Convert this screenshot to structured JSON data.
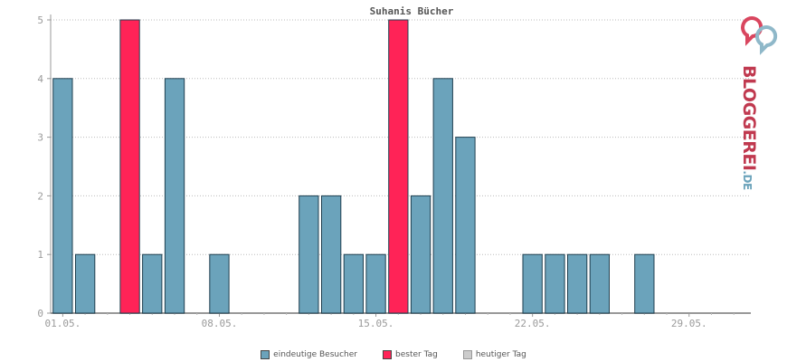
{
  "chart_data": {
    "type": "bar",
    "title": "Suhanis Bücher",
    "categories": [
      "01.05.",
      "02.05.",
      "03.05.",
      "04.05.",
      "05.05.",
      "06.05.",
      "07.05.",
      "08.05.",
      "09.05.",
      "10.05.",
      "11.05.",
      "12.05.",
      "13.05.",
      "14.05.",
      "15.05.",
      "16.05.",
      "17.05.",
      "18.05.",
      "19.05.",
      "20.05.",
      "21.05.",
      "22.05.",
      "23.05.",
      "24.05.",
      "25.05.",
      "26.05.",
      "27.05.",
      "28.05.",
      "29.05.",
      "30.05.",
      "31.05."
    ],
    "x_tick_labels": [
      "01.05.",
      "08.05.",
      "15.05.",
      "22.05.",
      "29.05."
    ],
    "x_tick_indices": [
      0,
      7,
      14,
      21,
      28
    ],
    "values": [
      4,
      1,
      0,
      5,
      1,
      4,
      0,
      1,
      0,
      0,
      0,
      2,
      2,
      1,
      1,
      5,
      2,
      4,
      3,
      0,
      0,
      1,
      1,
      1,
      1,
      0,
      1,
      0,
      0,
      0,
      0
    ],
    "best_day_indices": [
      3,
      15
    ],
    "ylim": [
      0,
      5
    ],
    "yticks": [
      0,
      1,
      2,
      3,
      4,
      5
    ],
    "grid": true,
    "legend_position": "bottom",
    "colors": {
      "unique_visitors": "#6ba3bb",
      "best_day": "#ff2357",
      "today": "#cccccc",
      "bar_border": "#1f3f4f"
    }
  },
  "legend": {
    "unique_visitors": "eindeutige Besucher",
    "best_day": "bester Tag",
    "today": "heutiger Tag"
  },
  "logo": {
    "text_main": "BLOGGEREI",
    "text_suffix": ".DE",
    "color_main": "#c0394f",
    "color_suffix": "#6ba3bb"
  }
}
